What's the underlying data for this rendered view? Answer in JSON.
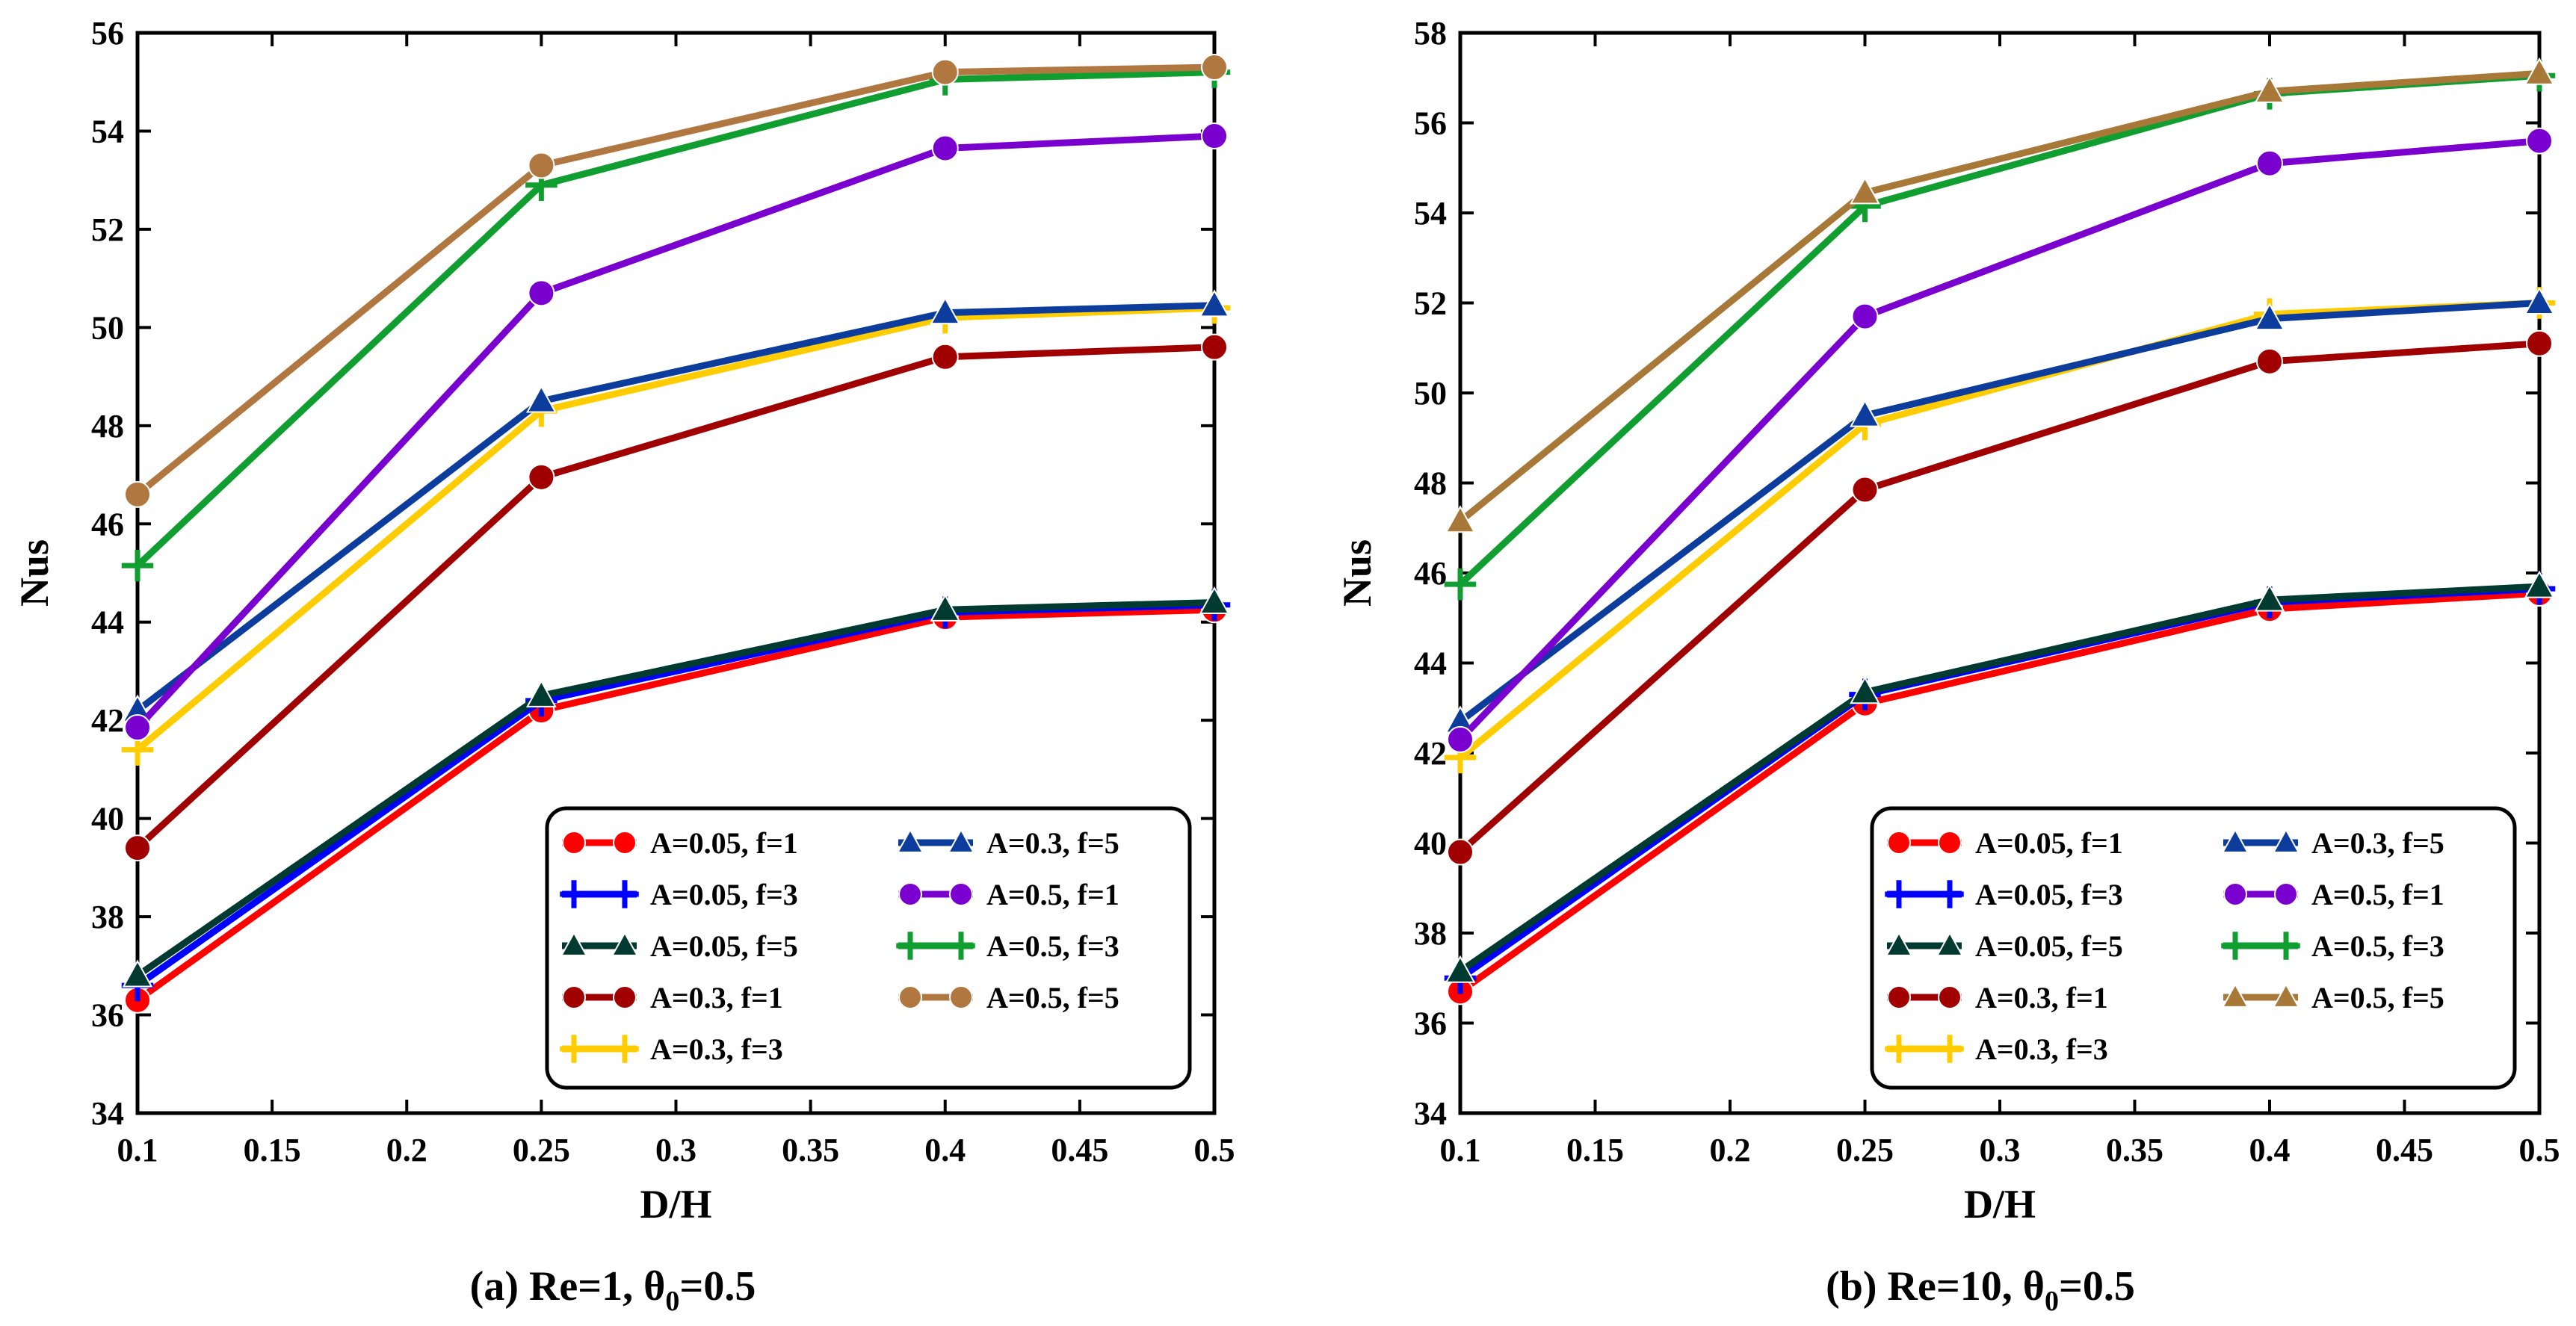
{
  "chart_data": [
    {
      "type": "line",
      "caption": "(a) Re=1, θ0=0.5",
      "caption_main": "(a) Re=1, θ",
      "caption_sub": "0",
      "caption_tail": "=0.5",
      "xlabel": "D/H",
      "ylabel": "Nus",
      "xlim": [
        0.1,
        0.5
      ],
      "ylim": [
        34,
        56
      ],
      "xticks": [
        "0.1",
        "0.15",
        "0.2",
        "0.25",
        "0.3",
        "0.35",
        "0.4",
        "0.45",
        "0.5"
      ],
      "yticks": [
        "34",
        "36",
        "38",
        "40",
        "42",
        "44",
        "46",
        "48",
        "50",
        "52",
        "54",
        "56"
      ],
      "x": [
        0.1,
        0.25,
        0.4,
        0.5
      ],
      "legend_position": "lower-right",
      "series": [
        {
          "name": "A=0.05, f=1",
          "color": "#ff0000",
          "marker": "circle",
          "values": [
            36.3,
            42.2,
            44.1,
            44.25
          ]
        },
        {
          "name": "A=0.05, f=3",
          "color": "#0000ff",
          "marker": "plus",
          "values": [
            36.6,
            42.4,
            44.2,
            44.35
          ]
        },
        {
          "name": "A=0.05, f=5",
          "color": "#003a30",
          "marker": "triangle",
          "values": [
            36.8,
            42.5,
            44.25,
            44.4
          ]
        },
        {
          "name": "A=0.3, f=1",
          "color": "#a00000",
          "marker": "circle",
          "values": [
            39.4,
            46.95,
            49.4,
            49.6
          ]
        },
        {
          "name": "A=0.3, f=3",
          "color": "#ffcc00",
          "marker": "plus",
          "values": [
            41.4,
            48.3,
            50.2,
            50.4
          ]
        },
        {
          "name": "A=0.3, f=5",
          "color": "#0c3c9c",
          "marker": "triangle",
          "values": [
            42.2,
            48.5,
            50.3,
            50.45
          ]
        },
        {
          "name": "A=0.5, f=1",
          "color": "#7a00d0",
          "marker": "circle",
          "values": [
            41.85,
            50.7,
            53.65,
            53.9
          ]
        },
        {
          "name": "A=0.5, f=3",
          "color": "#109e30",
          "marker": "plus",
          "values": [
            45.15,
            52.9,
            55.05,
            55.2
          ]
        },
        {
          "name": "A=0.5, f=5",
          "color": "#b07840",
          "marker": "circle",
          "values": [
            46.6,
            53.3,
            55.2,
            55.3
          ]
        }
      ]
    },
    {
      "type": "line",
      "caption": "(b) Re=10, θ0=0.5",
      "caption_main": "(b) Re=10, θ",
      "caption_sub": "0",
      "caption_tail": "=0.5",
      "xlabel": "D/H",
      "ylabel": "Nus",
      "xlim": [
        0.1,
        0.5
      ],
      "ylim": [
        34,
        58
      ],
      "xticks": [
        "0.1",
        "0.15",
        "0.2",
        "0.25",
        "0.3",
        "0.35",
        "0.4",
        "0.45",
        "0.5"
      ],
      "yticks": [
        "34",
        "36",
        "38",
        "40",
        "42",
        "44",
        "46",
        "48",
        "50",
        "52",
        "54",
        "56",
        "58"
      ],
      "x": [
        0.1,
        0.25,
        0.4,
        0.5
      ],
      "legend_position": "lower-right",
      "series": [
        {
          "name": "A=0.05, f=1",
          "color": "#ff0000",
          "marker": "circle",
          "values": [
            36.7,
            43.1,
            45.2,
            45.55
          ]
        },
        {
          "name": "A=0.05, f=3",
          "color": "#0000ff",
          "marker": "plus",
          "values": [
            37.0,
            43.3,
            45.35,
            45.65
          ]
        },
        {
          "name": "A=0.05, f=5",
          "color": "#003a30",
          "marker": "triangle",
          "values": [
            37.15,
            43.35,
            45.4,
            45.7
          ]
        },
        {
          "name": "A=0.3, f=1",
          "color": "#a00000",
          "marker": "circle",
          "values": [
            39.8,
            47.85,
            50.7,
            51.1
          ]
        },
        {
          "name": "A=0.3, f=3",
          "color": "#ffcc00",
          "marker": "plus",
          "values": [
            41.9,
            49.3,
            51.75,
            52.0
          ]
        },
        {
          "name": "A=0.3, f=5",
          "color": "#0c3c9c",
          "marker": "triangle",
          "values": [
            42.7,
            49.5,
            51.65,
            52.0
          ]
        },
        {
          "name": "A=0.5, f=1",
          "color": "#7a00d0",
          "marker": "circle",
          "values": [
            42.3,
            51.7,
            55.1,
            55.6
          ]
        },
        {
          "name": "A=0.5, f=3",
          "color": "#109e30",
          "marker": "plus",
          "values": [
            45.75,
            54.15,
            56.65,
            57.05
          ]
        },
        {
          "name": "A=0.5, f=5",
          "color": "#a87838",
          "marker": "triangle",
          "values": [
            47.15,
            54.45,
            56.7,
            57.1
          ]
        }
      ]
    }
  ]
}
